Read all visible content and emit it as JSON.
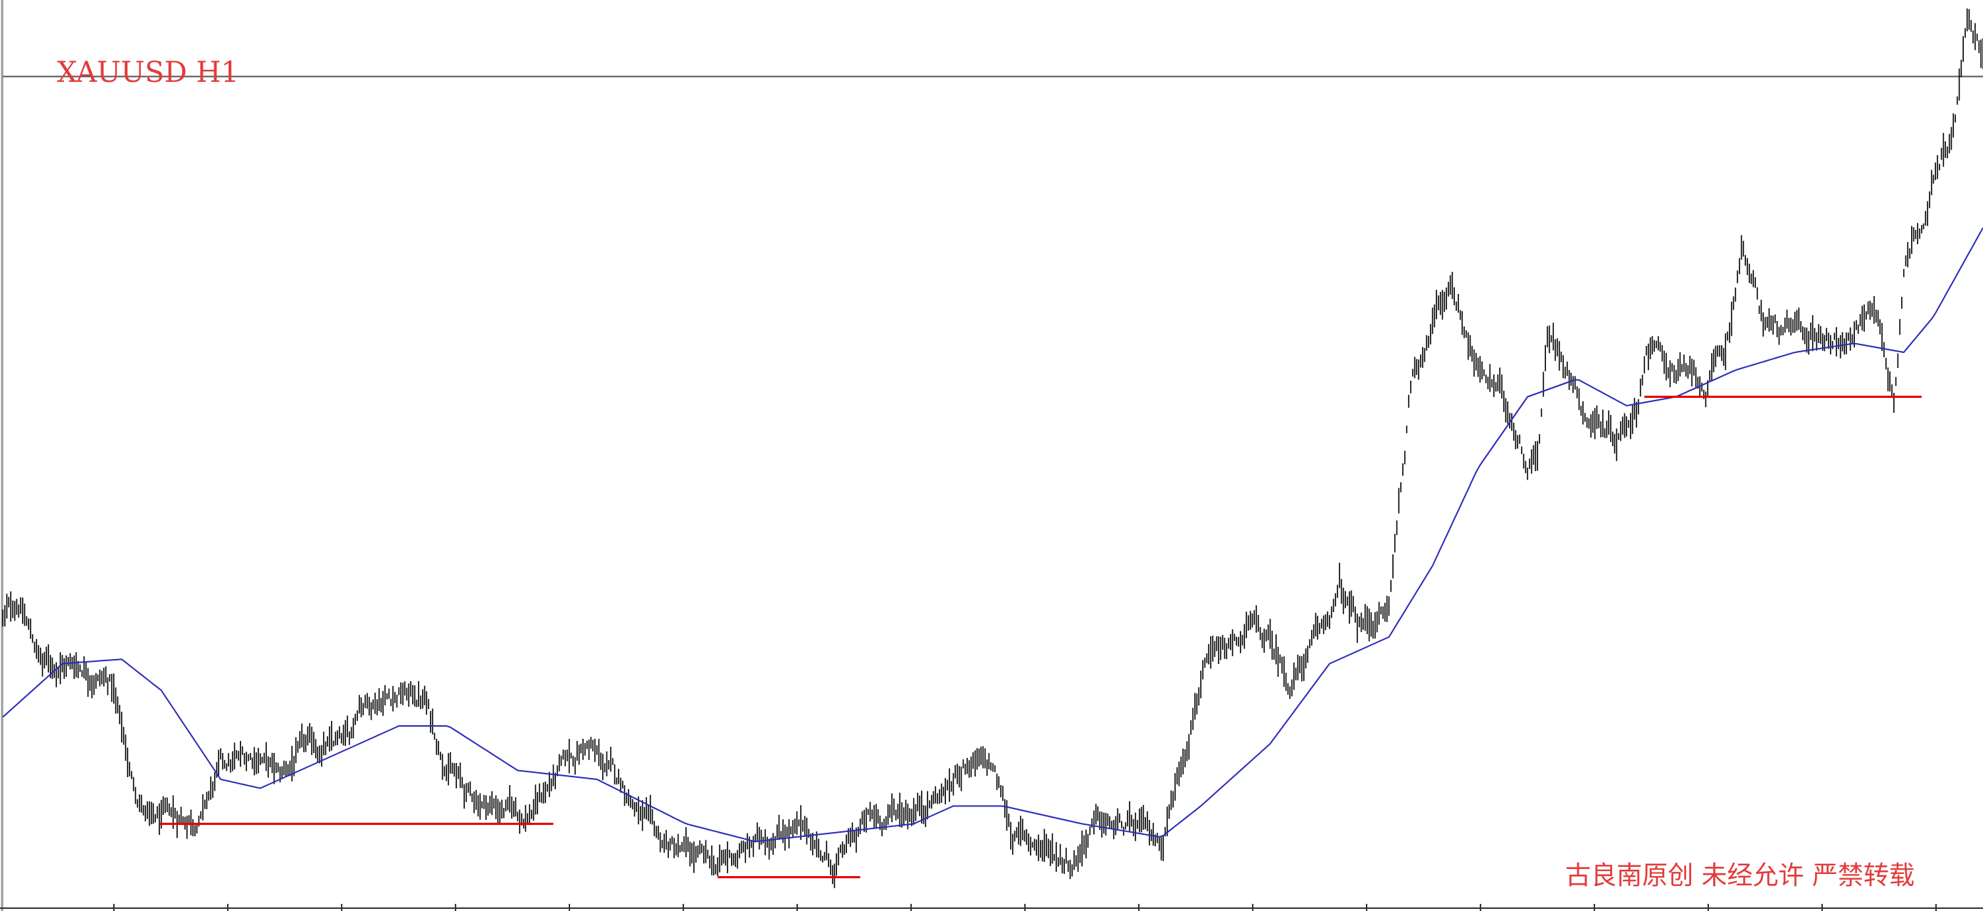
{
  "chart": {
    "symbol_label": "XAUUSD H1",
    "watermark": "古良南原创 未经允许 严禁转载"
  },
  "colors": {
    "background": "#ffffff",
    "price": "#000000",
    "moving_average": "#2b2bb8",
    "support_lines": "#e60000",
    "title_text": "#e23b3b",
    "grid_frame": "#555555"
  },
  "chart_data": {
    "type": "line",
    "title": "XAUUSD H1",
    "xlabel": "",
    "ylabel": "",
    "x_unit": "bar index (hourly)",
    "xlim": [
      0,
      1000
    ],
    "ylim": [
      0,
      100
    ],
    "grid": false,
    "series": [
      {
        "style": "price-bars",
        "keyframes": [
          {
            "x": 0,
            "y": 32
          },
          {
            "x": 8,
            "y": 34
          },
          {
            "x": 20,
            "y": 27
          },
          {
            "x": 40,
            "y": 27
          },
          {
            "x": 55,
            "y": 25
          },
          {
            "x": 65,
            "y": 14
          },
          {
            "x": 75,
            "y": 9
          },
          {
            "x": 100,
            "y": 10
          },
          {
            "x": 110,
            "y": 15
          },
          {
            "x": 130,
            "y": 17
          },
          {
            "x": 140,
            "y": 14
          },
          {
            "x": 150,
            "y": 17
          },
          {
            "x": 175,
            "y": 18
          },
          {
            "x": 180,
            "y": 23
          },
          {
            "x": 200,
            "y": 24
          },
          {
            "x": 213,
            "y": 23
          },
          {
            "x": 220,
            "y": 18
          },
          {
            "x": 235,
            "y": 12
          },
          {
            "x": 265,
            "y": 10
          },
          {
            "x": 278,
            "y": 14
          },
          {
            "x": 295,
            "y": 18
          },
          {
            "x": 305,
            "y": 15
          },
          {
            "x": 315,
            "y": 13
          },
          {
            "x": 330,
            "y": 7
          },
          {
            "x": 360,
            "y": 4
          },
          {
            "x": 375,
            "y": 6
          },
          {
            "x": 395,
            "y": 9
          },
          {
            "x": 410,
            "y": 7
          },
          {
            "x": 420,
            "y": 4
          },
          {
            "x": 435,
            "y": 9
          },
          {
            "x": 460,
            "y": 11
          },
          {
            "x": 478,
            "y": 13
          },
          {
            "x": 485,
            "y": 16
          },
          {
            "x": 500,
            "y": 15
          },
          {
            "x": 510,
            "y": 8
          },
          {
            "x": 540,
            "y": 5
          },
          {
            "x": 550,
            "y": 9
          },
          {
            "x": 575,
            "y": 8
          },
          {
            "x": 585,
            "y": 7
          },
          {
            "x": 595,
            "y": 16
          },
          {
            "x": 605,
            "y": 26
          },
          {
            "x": 618,
            "y": 28
          },
          {
            "x": 630,
            "y": 31
          },
          {
            "x": 640,
            "y": 29
          },
          {
            "x": 650,
            "y": 25
          },
          {
            "x": 665,
            "y": 30
          },
          {
            "x": 675,
            "y": 35
          },
          {
            "x": 685,
            "y": 31
          },
          {
            "x": 700,
            "y": 33
          },
          {
            "x": 705,
            "y": 45
          },
          {
            "x": 712,
            "y": 60
          },
          {
            "x": 725,
            "y": 67
          },
          {
            "x": 732,
            "y": 70
          },
          {
            "x": 745,
            "y": 60
          },
          {
            "x": 760,
            "y": 56
          },
          {
            "x": 770,
            "y": 50
          },
          {
            "x": 775,
            "y": 51
          },
          {
            "x": 780,
            "y": 64
          },
          {
            "x": 790,
            "y": 61
          },
          {
            "x": 800,
            "y": 55
          },
          {
            "x": 815,
            "y": 53
          },
          {
            "x": 825,
            "y": 56
          },
          {
            "x": 830,
            "y": 63
          },
          {
            "x": 845,
            "y": 60
          },
          {
            "x": 860,
            "y": 58
          },
          {
            "x": 870,
            "y": 62
          },
          {
            "x": 878,
            "y": 74
          },
          {
            "x": 888,
            "y": 66
          },
          {
            "x": 900,
            "y": 64
          },
          {
            "x": 915,
            "y": 64
          },
          {
            "x": 935,
            "y": 64
          },
          {
            "x": 945,
            "y": 68
          },
          {
            "x": 955,
            "y": 57
          },
          {
            "x": 960,
            "y": 72
          },
          {
            "x": 970,
            "y": 78
          },
          {
            "x": 985,
            "y": 87
          },
          {
            "x": 992,
            "y": 99
          },
          {
            "x": 1000,
            "y": 95
          }
        ]
      },
      {
        "style": "moving-average",
        "keyframes": [
          {
            "x": 0,
            "y": 21
          },
          {
            "x": 30,
            "y": 27
          },
          {
            "x": 60,
            "y": 27.5
          },
          {
            "x": 80,
            "y": 24
          },
          {
            "x": 110,
            "y": 14
          },
          {
            "x": 130,
            "y": 13
          },
          {
            "x": 160,
            "y": 16
          },
          {
            "x": 200,
            "y": 20
          },
          {
            "x": 225,
            "y": 20
          },
          {
            "x": 260,
            "y": 15
          },
          {
            "x": 300,
            "y": 14
          },
          {
            "x": 345,
            "y": 9
          },
          {
            "x": 380,
            "y": 7
          },
          {
            "x": 420,
            "y": 8
          },
          {
            "x": 460,
            "y": 9
          },
          {
            "x": 480,
            "y": 11
          },
          {
            "x": 505,
            "y": 11
          },
          {
            "x": 545,
            "y": 9
          },
          {
            "x": 585,
            "y": 7.5
          },
          {
            "x": 605,
            "y": 11
          },
          {
            "x": 640,
            "y": 18
          },
          {
            "x": 670,
            "y": 27
          },
          {
            "x": 700,
            "y": 30
          },
          {
            "x": 722,
            "y": 38
          },
          {
            "x": 745,
            "y": 49
          },
          {
            "x": 770,
            "y": 57
          },
          {
            "x": 795,
            "y": 59
          },
          {
            "x": 820,
            "y": 56
          },
          {
            "x": 845,
            "y": 57
          },
          {
            "x": 875,
            "y": 60
          },
          {
            "x": 905,
            "y": 62
          },
          {
            "x": 935,
            "y": 63
          },
          {
            "x": 960,
            "y": 62
          },
          {
            "x": 975,
            "y": 66
          },
          {
            "x": 1000,
            "y": 76
          }
        ]
      }
    ],
    "annotations": [
      {
        "type": "horizontal-support",
        "x": [
          79,
          278
        ],
        "y": 9
      },
      {
        "type": "horizontal-support",
        "x": [
          361,
          433
        ],
        "y": 3
      },
      {
        "type": "horizontal-support",
        "x": [
          829,
          969
        ],
        "y": 57
      },
      {
        "type": "horizontal-reference",
        "x": [
          0,
          1000
        ],
        "y": 93
      }
    ]
  }
}
